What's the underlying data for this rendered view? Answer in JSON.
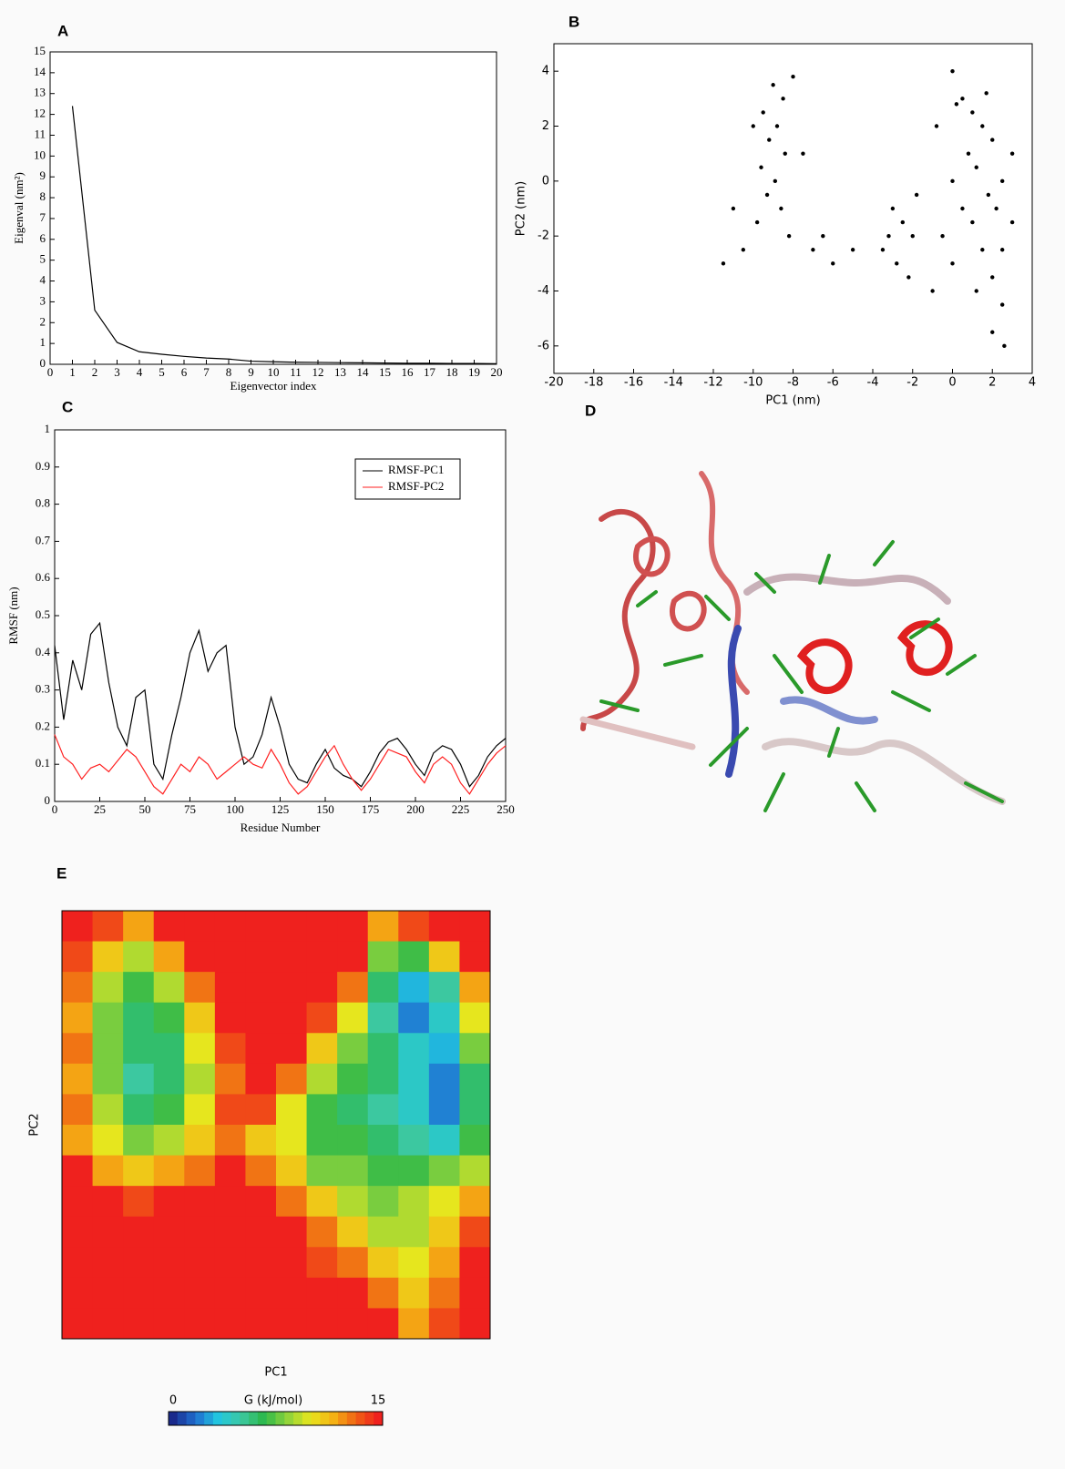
{
  "chart_data": [
    {
      "type": "line",
      "panel": "A",
      "x_label": "Eigenvector index",
      "y_label": "Eigenval (nm²)",
      "x": [
        1,
        2,
        3,
        4,
        5,
        6,
        7,
        8,
        9,
        10,
        11,
        12,
        13,
        14,
        15,
        16,
        17,
        18,
        19,
        20
      ],
      "values": [
        12.4,
        2.6,
        1.05,
        0.6,
        0.48,
        0.38,
        0.3,
        0.25,
        0.15,
        0.12,
        0.1,
        0.09,
        0.08,
        0.07,
        0.06,
        0.05,
        0.05,
        0.04,
        0.04,
        0.03
      ],
      "color": "#000000",
      "xlim": [
        0,
        20
      ],
      "xticks": [
        0,
        1,
        2,
        3,
        4,
        5,
        6,
        7,
        8,
        9,
        10,
        11,
        12,
        13,
        14,
        15,
        16,
        17,
        18,
        19,
        20
      ],
      "ylim": [
        0,
        15
      ],
      "yticks": [
        0,
        1,
        2,
        3,
        4,
        5,
        6,
        7,
        8,
        9,
        10,
        11,
        12,
        13,
        14,
        15
      ]
    },
    {
      "type": "scatter",
      "panel": "B",
      "x_label": "PC1 (nm)",
      "y_label": "PC2 (nm)",
      "color": "#000000",
      "x": [
        -9,
        -8.5,
        -9.5,
        -8.8,
        -9.2,
        -8.4,
        -9.6,
        -8.9,
        -9.3,
        -8.6,
        -9.8,
        -8.2,
        -10.5,
        -11.5,
        -11,
        -7.5,
        -10,
        -8,
        -7,
        -6,
        -5,
        -6.5,
        -3,
        -2.5,
        -2,
        -3.5,
        -2.8,
        -1.8,
        -2.2,
        -3.2,
        0,
        0.5,
        1,
        1.5,
        2,
        0.8,
        1.2,
        0,
        2.5,
        1.8,
        0.5,
        2.2,
        1,
        3,
        -0.5,
        1.5,
        2.5,
        0,
        2,
        -1,
        1.2,
        2.5,
        2,
        2.6,
        3,
        -0.8,
        0.2,
        1.7
      ],
      "y": [
        3.5,
        3,
        2.5,
        2,
        1.5,
        1,
        0.5,
        0,
        -0.5,
        -1,
        -1.5,
        -2,
        -2.5,
        -3,
        -1,
        1,
        2,
        3.8,
        -2.5,
        -3,
        -2.5,
        -2,
        -1,
        -1.5,
        -2,
        -2.5,
        -3,
        -0.5,
        -3.5,
        -2,
        4,
        3,
        2.5,
        2,
        1.5,
        1,
        0.5,
        0,
        0,
        -0.5,
        -1,
        -1,
        -1.5,
        -1.5,
        -2,
        -2.5,
        -2.5,
        -3,
        -3.5,
        -4,
        -4,
        -4.5,
        -5.5,
        -6,
        1,
        2,
        2.8,
        3.2
      ],
      "xlim": [
        -20,
        4
      ],
      "xticks": [
        -20,
        -18,
        -16,
        -14,
        -12,
        -10,
        -8,
        -6,
        -4,
        -2,
        0,
        2,
        4
      ],
      "ylim": [
        -7,
        5
      ],
      "yticks": [
        -6,
        -4,
        -2,
        0,
        2,
        4
      ]
    },
    {
      "type": "line",
      "panel": "C",
      "x_label": "Residue Number",
      "y_label": "RMSF (nm)",
      "legend": "upper right",
      "x": [
        0,
        5,
        10,
        15,
        20,
        25,
        30,
        35,
        40,
        45,
        50,
        55,
        60,
        65,
        70,
        75,
        80,
        85,
        90,
        95,
        100,
        105,
        110,
        115,
        120,
        125,
        130,
        135,
        140,
        145,
        150,
        155,
        160,
        165,
        170,
        175,
        180,
        185,
        190,
        195,
        200,
        205,
        210,
        215,
        220,
        225,
        230,
        235,
        240,
        245,
        250
      ],
      "series": [
        {
          "name": "RMSF-PC1",
          "color": "#000000",
          "values": [
            0.42,
            0.22,
            0.38,
            0.3,
            0.45,
            0.48,
            0.32,
            0.2,
            0.15,
            0.28,
            0.3,
            0.1,
            0.06,
            0.18,
            0.28,
            0.4,
            0.46,
            0.35,
            0.4,
            0.42,
            0.2,
            0.1,
            0.12,
            0.18,
            0.28,
            0.2,
            0.1,
            0.06,
            0.05,
            0.1,
            0.14,
            0.09,
            0.07,
            0.06,
            0.04,
            0.08,
            0.13,
            0.16,
            0.17,
            0.14,
            0.1,
            0.07,
            0.13,
            0.15,
            0.14,
            0.1,
            0.04,
            0.07,
            0.12,
            0.15,
            0.17
          ]
        },
        {
          "name": "RMSF-PC2",
          "color": "#ff2020",
          "values": [
            0.18,
            0.12,
            0.1,
            0.06,
            0.09,
            0.1,
            0.08,
            0.11,
            0.14,
            0.12,
            0.08,
            0.04,
            0.02,
            0.06,
            0.1,
            0.08,
            0.12,
            0.1,
            0.06,
            0.08,
            0.1,
            0.12,
            0.1,
            0.09,
            0.14,
            0.1,
            0.05,
            0.02,
            0.04,
            0.08,
            0.12,
            0.15,
            0.1,
            0.06,
            0.03,
            0.06,
            0.1,
            0.14,
            0.13,
            0.12,
            0.08,
            0.05,
            0.1,
            0.12,
            0.1,
            0.05,
            0.02,
            0.06,
            0.1,
            0.13,
            0.15
          ]
        }
      ],
      "xlim": [
        0,
        250
      ],
      "xticks": [
        0,
        25,
        50,
        75,
        100,
        125,
        150,
        175,
        200,
        225,
        250
      ],
      "ylim": [
        0,
        1
      ],
      "yticks": [
        0,
        0.1,
        0.2,
        0.3,
        0.4,
        0.5,
        0.6,
        0.7,
        0.8,
        0.9,
        1
      ]
    },
    {
      "type": "heatmap",
      "panel": "E",
      "x_label": "PC1",
      "y_label": "PC2",
      "colorbar": {
        "label": "G (kJ/mol)",
        "min": 0,
        "max": 15
      },
      "colorscale": [
        "#1a2a8c",
        "#1f6fd0",
        "#22c8e0",
        "#3cc8a0",
        "#2cb84a",
        "#8cd23c",
        "#e6e61e",
        "#f5b414",
        "#f06414",
        "#ef211e"
      ],
      "z": [
        [
          15,
          14,
          12,
          15,
          15,
          15,
          15,
          15,
          15,
          15,
          12,
          14,
          15,
          15
        ],
        [
          14,
          11,
          9,
          12,
          15,
          15,
          15,
          15,
          15,
          15,
          8,
          7,
          11,
          15
        ],
        [
          13,
          9,
          7,
          9,
          13,
          15,
          15,
          15,
          15,
          13,
          6,
          3,
          5,
          12
        ],
        [
          12,
          8,
          6,
          7,
          11,
          15,
          15,
          15,
          14,
          10,
          5,
          2,
          4,
          10
        ],
        [
          13,
          8,
          6,
          6,
          10,
          14,
          15,
          15,
          11,
          8,
          6,
          4,
          3,
          8
        ],
        [
          12,
          8,
          5,
          6,
          9,
          13,
          15,
          13,
          9,
          7,
          6,
          4,
          2,
          6
        ],
        [
          13,
          9,
          6,
          7,
          10,
          14,
          14,
          10,
          7,
          6,
          5,
          4,
          2,
          6
        ],
        [
          12,
          10,
          8,
          9,
          11,
          13,
          11,
          10,
          7,
          7,
          6,
          5,
          4,
          7
        ],
        [
          15,
          12,
          11,
          12,
          13,
          15,
          13,
          11,
          8,
          8,
          7,
          7,
          8,
          9
        ],
        [
          15,
          15,
          14,
          15,
          15,
          15,
          15,
          13,
          11,
          9,
          8,
          9,
          10,
          12
        ],
        [
          15,
          15,
          15,
          15,
          15,
          15,
          15,
          15,
          13,
          11,
          9,
          9,
          11,
          14
        ],
        [
          15,
          15,
          15,
          15,
          15,
          15,
          15,
          15,
          14,
          13,
          11,
          10,
          12,
          15
        ],
        [
          15,
          15,
          15,
          15,
          15,
          15,
          15,
          15,
          15,
          15,
          13,
          11,
          13,
          15
        ],
        [
          15,
          15,
          15,
          15,
          15,
          15,
          15,
          15,
          15,
          15,
          15,
          12,
          14,
          15
        ]
      ]
    }
  ],
  "image_panel": {
    "panel": "D"
  }
}
